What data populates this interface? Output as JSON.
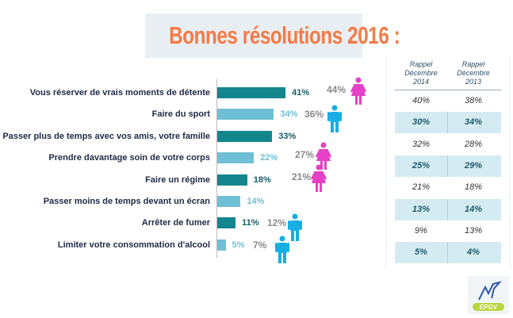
{
  "chart_data": {
    "type": "bar",
    "title": "Bonnes résolutions 2016 :",
    "categories": [
      "Vous réserver de vrais moments de détente",
      "Faire du sport",
      "Passer plus de temps avec vos amis, votre famille",
      "Prendre davantage soin de votre corps",
      "Faire un régime",
      "Passer moins de temps devant un écran",
      "Arrêter de fumer",
      "Limiter votre consommation d'alcool"
    ],
    "values": [
      41,
      34,
      33,
      22,
      18,
      14,
      11,
      5
    ],
    "value_labels": [
      "41%",
      "34%",
      "33%",
      "22%",
      "18%",
      "14%",
      "11%",
      "5%"
    ],
    "gender_highlights": [
      {
        "row": 0,
        "label": "44%",
        "gender": "female"
      },
      {
        "row": 1,
        "label": "36%",
        "gender": "male"
      },
      {
        "row": 3,
        "label": "27%",
        "gender": "female"
      },
      {
        "row": 4,
        "label": "21%",
        "gender": "female"
      },
      {
        "row": 6,
        "label": "12%",
        "gender": "male"
      },
      {
        "row": 7,
        "label": "7%",
        "gender": "male"
      }
    ],
    "table": {
      "headers": [
        [
          "Rappel",
          "Décembre",
          "2014"
        ],
        [
          "Rappel",
          "Décembre",
          "2013"
        ]
      ],
      "rows": [
        [
          "40%",
          "38%"
        ],
        [
          "30%",
          "34%"
        ],
        [
          "32%",
          "28%"
        ],
        [
          "25%",
          "29%"
        ],
        [
          "21%",
          "18%"
        ],
        [
          "13%",
          "14%"
        ],
        [
          "9%",
          "13%"
        ],
        [
          "5%",
          "4%"
        ]
      ]
    },
    "colors": {
      "dark_bar": "#13868d",
      "light_bar": "#6fbfd6",
      "female": "#e640c6",
      "male": "#16aee3",
      "title": "#f47b46"
    }
  },
  "logo": {
    "text": "EPGV"
  }
}
